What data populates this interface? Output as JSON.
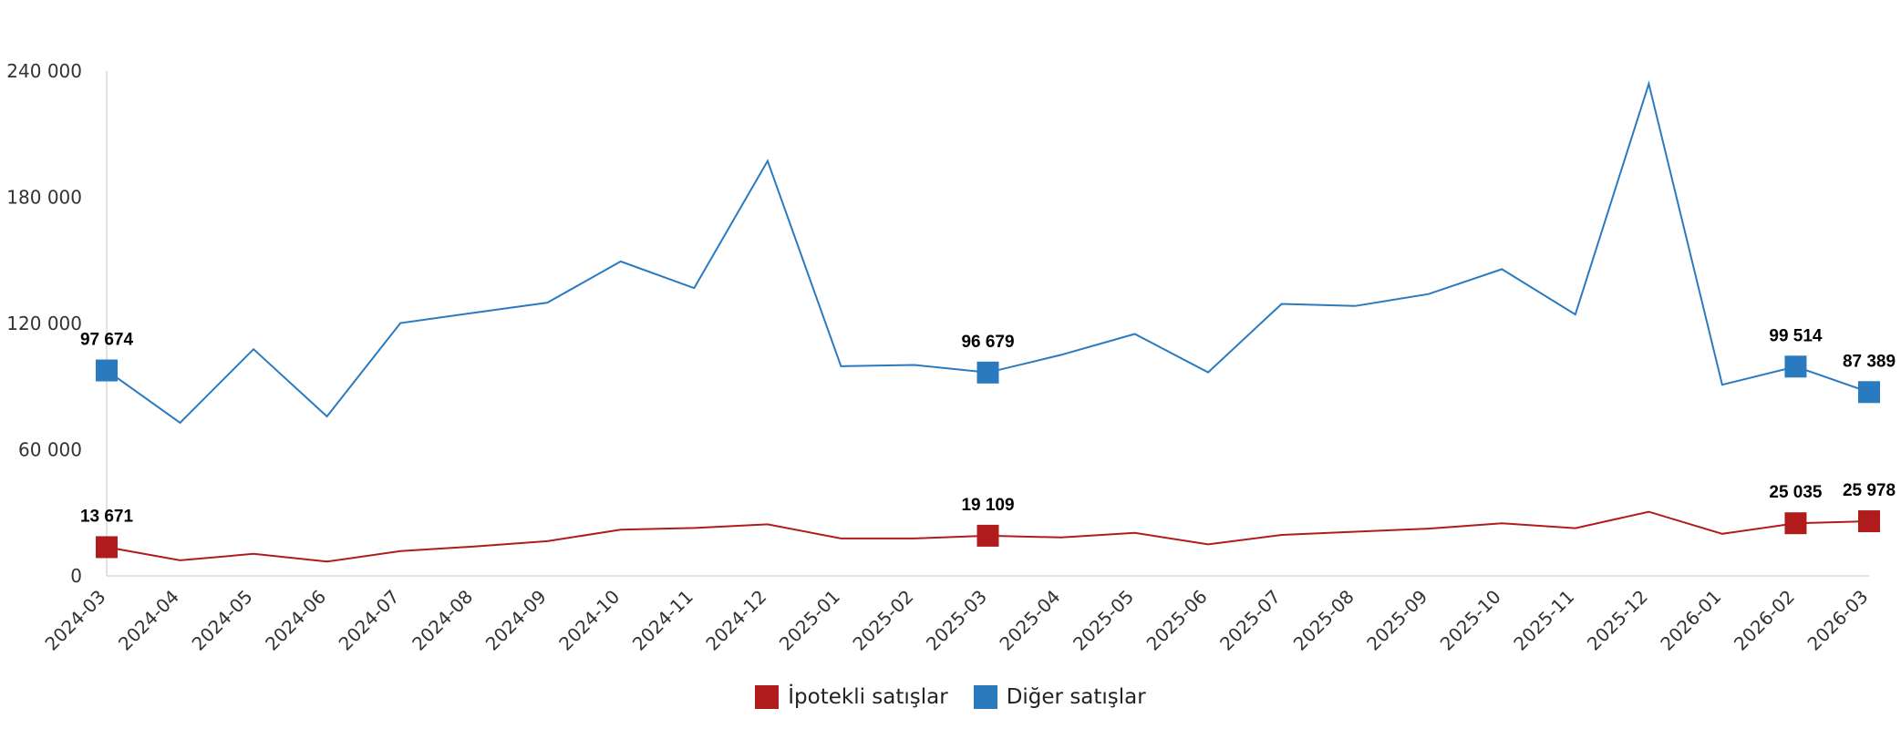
{
  "chart_data": {
    "type": "line",
    "title": "",
    "xlabel": "",
    "ylabel": "",
    "x": [
      "2024-03",
      "2024-04",
      "2024-05",
      "2024-06",
      "2024-07",
      "2024-08",
      "2024-09",
      "2024-10",
      "2024-11",
      "2024-12",
      "2025-01",
      "2025-02",
      "2025-03",
      "2025-04",
      "2025-05",
      "2025-06",
      "2025-07",
      "2025-08",
      "2025-09",
      "2025-10",
      "2025-11",
      "2025-12",
      "2026-01",
      "2026-02",
      "2026-03"
    ],
    "ylim": [
      0,
      240000
    ],
    "yticks": [
      0,
      60000,
      120000,
      180000,
      240000
    ],
    "ytick_labels": [
      "0",
      "60 000",
      "120 000",
      "180 000",
      "240 000"
    ],
    "grid": false,
    "legend_position": "bottom",
    "series": [
      {
        "name": "İpotekli satışlar",
        "color": "#b01c1c",
        "values": [
          13671,
          7400,
          10500,
          6800,
          11800,
          14000,
          16500,
          22000,
          22800,
          24500,
          17800,
          17800,
          19109,
          18300,
          20500,
          15000,
          19500,
          21000,
          22500,
          25000,
          22700,
          30500,
          20000,
          25035,
          25978
        ],
        "markers": [
          {
            "index": 0,
            "label": "13 671"
          },
          {
            "index": 12,
            "label": "19 109"
          },
          {
            "index": 23,
            "label": "25 035"
          },
          {
            "index": 24,
            "label": "25 978"
          }
        ]
      },
      {
        "name": "Diğer satışlar",
        "color": "#2a7ac0",
        "values": [
          97674,
          72800,
          107800,
          75800,
          120200,
          125100,
          129900,
          149500,
          136800,
          197300,
          99700,
          100300,
          96679,
          105100,
          115000,
          96800,
          129300,
          128300,
          134000,
          145800,
          124300,
          234000,
          90900,
          99514,
          87389
        ],
        "markers": [
          {
            "index": 0,
            "label": "97 674"
          },
          {
            "index": 12,
            "label": "96 679"
          },
          {
            "index": 23,
            "label": "99 514"
          },
          {
            "index": 24,
            "label": "87 389"
          }
        ]
      }
    ]
  }
}
